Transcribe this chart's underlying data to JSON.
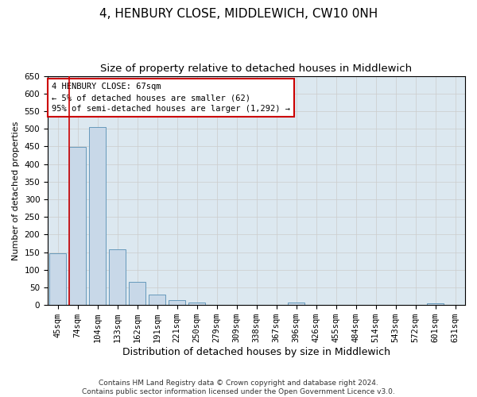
{
  "title": "4, HENBURY CLOSE, MIDDLEWICH, CW10 0NH",
  "subtitle": "Size of property relative to detached houses in Middlewich",
  "xlabel": "Distribution of detached houses by size in Middlewich",
  "ylabel": "Number of detached properties",
  "categories": [
    "45sqm",
    "74sqm",
    "104sqm",
    "133sqm",
    "162sqm",
    "191sqm",
    "221sqm",
    "250sqm",
    "279sqm",
    "309sqm",
    "338sqm",
    "367sqm",
    "396sqm",
    "426sqm",
    "455sqm",
    "484sqm",
    "514sqm",
    "543sqm",
    "572sqm",
    "601sqm",
    "631sqm"
  ],
  "values": [
    146,
    448,
    505,
    157,
    66,
    30,
    14,
    8,
    0,
    0,
    0,
    0,
    7,
    0,
    0,
    0,
    0,
    0,
    0,
    5,
    0
  ],
  "bar_color": "#c8d8e8",
  "bar_edge_color": "#6699bb",
  "marker_color": "#cc0000",
  "annotation_text": "4 HENBURY CLOSE: 67sqm\n← 5% of detached houses are smaller (62)\n95% of semi-detached houses are larger (1,292) →",
  "annotation_box_color": "#ffffff",
  "annotation_box_edge": "#cc0000",
  "ylim": [
    0,
    650
  ],
  "yticks": [
    0,
    50,
    100,
    150,
    200,
    250,
    300,
    350,
    400,
    450,
    500,
    550,
    600,
    650
  ],
  "grid_color": "#cccccc",
  "background_color": "#dce8f0",
  "footer_text": "Contains HM Land Registry data © Crown copyright and database right 2024.\nContains public sector information licensed under the Open Government Licence v3.0.",
  "title_fontsize": 11,
  "subtitle_fontsize": 9.5,
  "xlabel_fontsize": 9,
  "ylabel_fontsize": 8,
  "tick_fontsize": 7.5,
  "footer_fontsize": 6.5
}
